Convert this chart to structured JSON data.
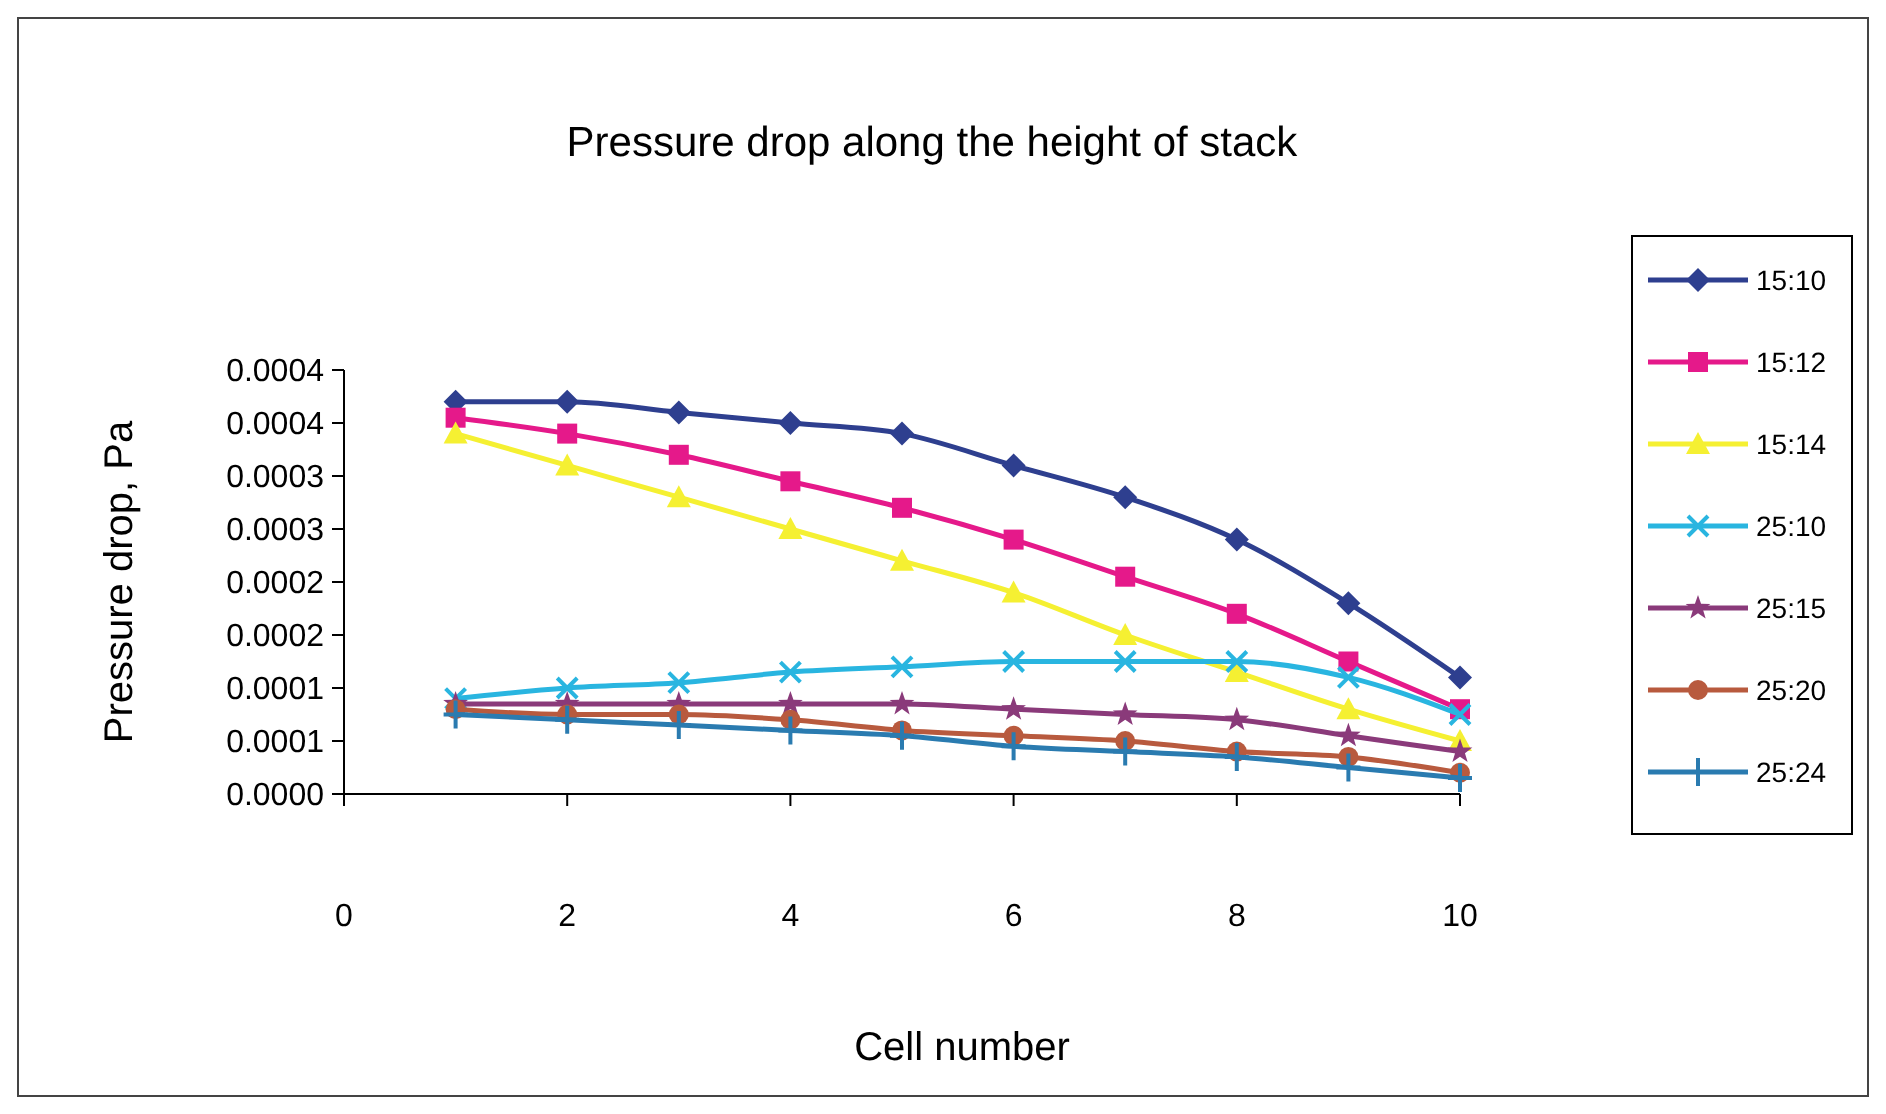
{
  "chart_data": {
    "type": "line",
    "title": "Pressure drop along the height of stack",
    "xlabel": "Cell number",
    "ylabel": "Pressure drop, Pa",
    "x": [
      1,
      2,
      3,
      4,
      5,
      6,
      7,
      8,
      9,
      10
    ],
    "xlim": [
      0,
      10
    ],
    "xticks": [
      0,
      2,
      4,
      6,
      8,
      10
    ],
    "ylim": [
      0,
      0.0004
    ],
    "yticks": [
      {
        "value": 0,
        "label": "0.0000"
      },
      {
        "value": 5e-05,
        "label": "0.0001"
      },
      {
        "value": 0.0001,
        "label": "0.0001"
      },
      {
        "value": 0.00015,
        "label": "0.0002"
      },
      {
        "value": 0.0002,
        "label": "0.0002"
      },
      {
        "value": 0.00025,
        "label": "0.0003"
      },
      {
        "value": 0.0003,
        "label": "0.0003"
      },
      {
        "value": 0.00035,
        "label": "0.0004"
      },
      {
        "value": 0.0004,
        "label": "0.0004"
      }
    ],
    "grid": false,
    "legend": "right",
    "line_style": "solid",
    "series": [
      {
        "name": "15:10",
        "color": "#2e3f8f",
        "marker": "diamond",
        "values": [
          0.00037,
          0.00037,
          0.00036,
          0.00035,
          0.00034,
          0.00031,
          0.00028,
          0.00024,
          0.00018,
          0.00011
        ]
      },
      {
        "name": "15:12",
        "color": "#e5198a",
        "marker": "square",
        "values": [
          0.000355,
          0.00034,
          0.00032,
          0.000295,
          0.00027,
          0.00024,
          0.000205,
          0.00017,
          0.000125,
          8e-05
        ]
      },
      {
        "name": "15:14",
        "color": "#f5f032",
        "marker": "triangle",
        "values": [
          0.00034,
          0.00031,
          0.00028,
          0.00025,
          0.00022,
          0.00019,
          0.00015,
          0.000115,
          8e-05,
          5e-05
        ]
      },
      {
        "name": "25:10",
        "color": "#29b5e0",
        "marker": "cross",
        "values": [
          9e-05,
          0.0001,
          0.000105,
          0.000115,
          0.00012,
          0.000125,
          0.000125,
          0.000125,
          0.00011,
          7.5e-05
        ]
      },
      {
        "name": "25:15",
        "color": "#8a3a7a",
        "marker": "star",
        "values": [
          8.5e-05,
          8.5e-05,
          8.5e-05,
          8.5e-05,
          8.5e-05,
          8e-05,
          7.5e-05,
          7e-05,
          5.5e-05,
          4e-05
        ]
      },
      {
        "name": "25:20",
        "color": "#b85a3e",
        "marker": "circle",
        "values": [
          8e-05,
          7.5e-05,
          7.5e-05,
          7e-05,
          6e-05,
          5.5e-05,
          5e-05,
          4e-05,
          3.5e-05,
          2e-05
        ]
      },
      {
        "name": "25:24",
        "color": "#2a7bb0",
        "marker": "plus",
        "values": [
          7.5e-05,
          7e-05,
          6.5e-05,
          6e-05,
          5.5e-05,
          4.5e-05,
          4e-05,
          3.5e-05,
          2.5e-05,
          1.5e-05
        ]
      }
    ]
  }
}
